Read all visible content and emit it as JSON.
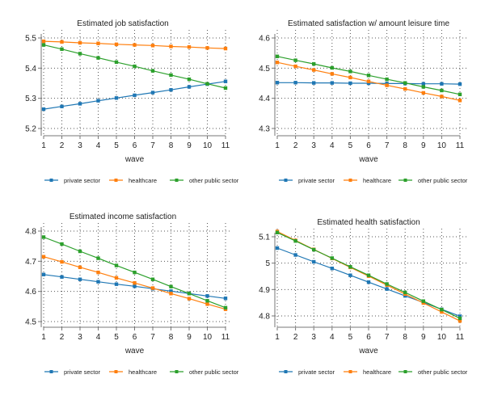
{
  "chart_data": [
    {
      "type": "line",
      "title": "Estimated job satisfaction",
      "xlabel": "wave",
      "ylabel": "",
      "x": [
        1,
        2,
        3,
        4,
        5,
        6,
        7,
        8,
        9,
        10,
        11
      ],
      "yticks": [
        "5.2",
        "5.3",
        "5.4",
        "5.5"
      ],
      "ylim": [
        5.2,
        5.5
      ],
      "grid": true,
      "legend_position": "bottom",
      "series": [
        {
          "name": "private sector",
          "color": "#1f77b4",
          "values": [
            5.264,
            5.273,
            5.282,
            5.292,
            5.301,
            5.31,
            5.319,
            5.328,
            5.338,
            5.347,
            5.356
          ]
        },
        {
          "name": "healthcare",
          "color": "#ff7f0e",
          "values": [
            5.489,
            5.487,
            5.484,
            5.482,
            5.479,
            5.477,
            5.475,
            5.472,
            5.47,
            5.467,
            5.465
          ]
        },
        {
          "name": "other public sector",
          "color": "#2ca02c",
          "values": [
            5.477,
            5.463,
            5.448,
            5.434,
            5.42,
            5.406,
            5.391,
            5.377,
            5.363,
            5.348,
            5.334
          ]
        }
      ]
    },
    {
      "type": "line",
      "title": "Estimated satisfaction w/ amount leisure time",
      "xlabel": "wave",
      "ylabel": "",
      "x": [
        1,
        2,
        3,
        4,
        5,
        6,
        7,
        8,
        9,
        10,
        11
      ],
      "yticks": [
        "4.3",
        "4.4",
        "4.5",
        "4.6"
      ],
      "ylim": [
        4.3,
        4.6
      ],
      "grid": true,
      "legend_position": "bottom",
      "series": [
        {
          "name": "private sector",
          "color": "#1f77b4",
          "values": [
            4.452,
            4.452,
            4.451,
            4.451,
            4.45,
            4.45,
            4.449,
            4.449,
            4.448,
            4.448,
            4.447
          ]
        },
        {
          "name": "healthcare",
          "color": "#ff7f0e",
          "values": [
            4.519,
            4.506,
            4.494,
            4.481,
            4.469,
            4.456,
            4.443,
            4.431,
            4.418,
            4.406,
            4.393
          ]
        },
        {
          "name": "other public sector",
          "color": "#2ca02c",
          "values": [
            4.539,
            4.526,
            4.514,
            4.501,
            4.489,
            4.476,
            4.463,
            4.451,
            4.438,
            4.426,
            4.413
          ]
        }
      ]
    },
    {
      "type": "line",
      "title": "Estimated income satisfaction",
      "xlabel": "wave",
      "ylabel": "",
      "x": [
        1,
        2,
        3,
        4,
        5,
        6,
        7,
        8,
        9,
        10,
        11
      ],
      "yticks": [
        "4.5",
        "4.6",
        "4.7",
        "4.8"
      ],
      "ylim": [
        4.5,
        4.8
      ],
      "grid": true,
      "legend_position": "bottom",
      "series": [
        {
          "name": "private sector",
          "color": "#1f77b4",
          "values": [
            4.656,
            4.648,
            4.64,
            4.632,
            4.624,
            4.617,
            4.609,
            4.601,
            4.593,
            4.585,
            4.577
          ]
        },
        {
          "name": "healthcare",
          "color": "#ff7f0e",
          "values": [
            4.715,
            4.698,
            4.68,
            4.663,
            4.645,
            4.628,
            4.611,
            4.593,
            4.576,
            4.558,
            4.541
          ]
        },
        {
          "name": "other public sector",
          "color": "#2ca02c",
          "values": [
            4.78,
            4.757,
            4.733,
            4.71,
            4.686,
            4.663,
            4.64,
            4.616,
            4.593,
            4.569,
            4.546
          ]
        }
      ]
    },
    {
      "type": "line",
      "title": "Estimated health satisfaction",
      "xlabel": "wave",
      "ylabel": "",
      "x": [
        1,
        2,
        3,
        4,
        5,
        6,
        7,
        8,
        9,
        10,
        11
      ],
      "yticks": [
        "4.8",
        "4.9",
        "5",
        "5.1"
      ],
      "ylim": [
        4.8,
        5.1
      ],
      "grid": true,
      "legend_position": "bottom",
      "series": [
        {
          "name": "private sector",
          "color": "#1f77b4",
          "values": [
            5.057,
            5.031,
            5.005,
            4.98,
            4.954,
            4.928,
            4.902,
            4.876,
            4.851,
            4.825,
            4.799
          ]
        },
        {
          "name": "healthcare",
          "color": "#ff7f0e",
          "values": [
            5.12,
            5.086,
            5.052,
            5.018,
            4.984,
            4.951,
            4.917,
            4.883,
            4.849,
            4.815,
            4.781
          ]
        },
        {
          "name": "other public sector",
          "color": "#2ca02c",
          "values": [
            5.116,
            5.084,
            5.051,
            5.019,
            4.986,
            4.954,
            4.921,
            4.889,
            4.856,
            4.824,
            4.791
          ]
        }
      ]
    }
  ]
}
